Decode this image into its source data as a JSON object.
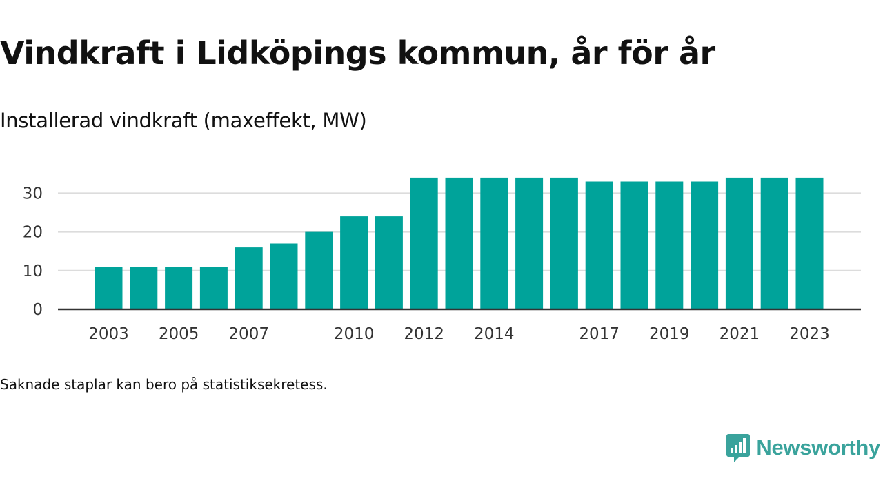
{
  "header": {
    "title": "Vindkraft i Lidköpings kommun, år för år",
    "subtitle": "Installerad vindkraft (maxeffekt, MW)"
  },
  "footer": {
    "note": "Saknade staplar kan bero på statistiksekretess.",
    "brand_name": "Newsworthy"
  },
  "colors": {
    "bar": "#00a39a",
    "grid": "#dcdcdc",
    "axis": "#333333",
    "brand": "#3aa39c"
  },
  "icons": {
    "brand_logo": "newsworthy-chat-chart-icon"
  },
  "chart_data": {
    "type": "bar",
    "categories": [
      "2003",
      "2004",
      "2005",
      "2006",
      "2007",
      "2008",
      "2009",
      "2010",
      "2011",
      "2012",
      "2013",
      "2014",
      "2015",
      "2016",
      "2017",
      "2018",
      "2019",
      "2020",
      "2021",
      "2022",
      "2023"
    ],
    "values": [
      11,
      11,
      11,
      11,
      16,
      17,
      20,
      24,
      24,
      34,
      34,
      34,
      34,
      34,
      33,
      33,
      33,
      33,
      34,
      34,
      34
    ],
    "x_tick_labels": [
      "2003",
      "2005",
      "2007",
      "2010",
      "2012",
      "2014",
      "2017",
      "2019",
      "2021",
      "2023"
    ],
    "y_ticks": [
      "0",
      "10",
      "20",
      "30"
    ],
    "ylim": [
      0,
      34
    ],
    "title": "Vindkraft i Lidköpings kommun, år för år",
    "subtitle": "Installerad vindkraft (maxeffekt, MW)",
    "xlabel": "",
    "ylabel": "",
    "grid": true,
    "legend": "none"
  }
}
